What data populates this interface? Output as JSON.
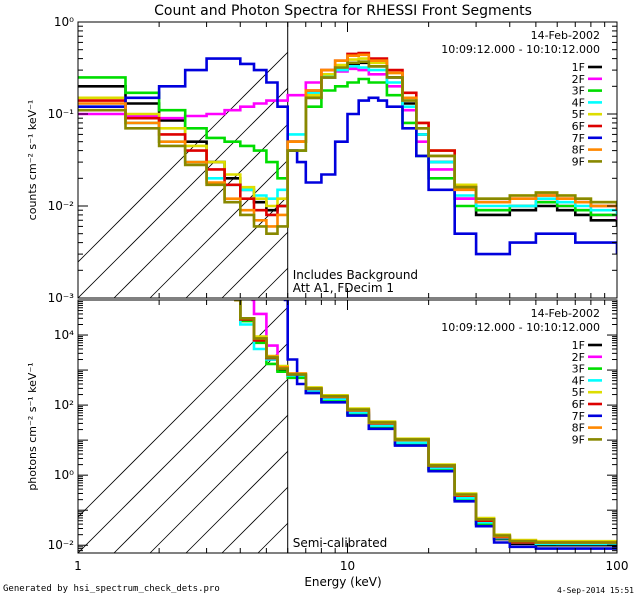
{
  "title": "Count and Photon Spectra for RHESSI Front Segments",
  "footer": {
    "generated_by": "Generated by hsi_spectrum_check_dets.pro",
    "timestamp": "4-Sep-2014 15:51"
  },
  "chart_data": [
    {
      "type": "line",
      "panel": "count spectra",
      "xscale": "log",
      "yscale": "log",
      "xlim": [
        1,
        100
      ],
      "ylim": [
        0.001,
        1
      ],
      "xlabel": "",
      "ylabel": "counts cm⁻² s⁻¹ keV⁻¹",
      "xticklabels": [],
      "yticklabels": [
        {
          "value": 1,
          "label": "10⁰"
        },
        {
          "value": 0.1,
          "label": "10⁻¹"
        },
        {
          "value": 0.01,
          "label": "10⁻²"
        },
        {
          "value": 0.001,
          "label": "10⁻³"
        }
      ],
      "hatched_below_keV": 6,
      "date": "14-Feb-2002",
      "time_range": "10:09:12.000 - 10:10:12.000",
      "annotations": [
        "Includes Background",
        "Att A1, FDecim 1"
      ],
      "series": [
        {
          "name": "1F",
          "color": "#000000",
          "x": [
            1,
            1.5,
            2,
            2.5,
            3,
            3.5,
            4,
            4.5,
            5,
            5.5,
            6,
            7,
            8,
            9,
            10,
            11,
            12,
            14,
            16,
            18,
            20,
            25,
            30,
            40,
            50,
            60,
            70,
            80,
            100
          ],
          "y": [
            0.2,
            0.13,
            0.085,
            0.05,
            0.03,
            0.02,
            0.015,
            0.011,
            0.009,
            0.01,
            0.05,
            0.15,
            0.25,
            0.3,
            0.35,
            0.36,
            0.33,
            0.25,
            0.13,
            0.06,
            0.03,
            0.012,
            0.008,
            0.009,
            0.01,
            0.009,
            0.008,
            0.007,
            0.006
          ]
        },
        {
          "name": "2F",
          "color": "#ff00ff",
          "x": [
            1,
            1.5,
            2,
            2.5,
            3,
            3.5,
            4,
            4.5,
            5,
            5.5,
            6,
            7,
            8,
            9,
            10,
            11,
            12,
            14,
            16,
            18,
            20,
            25,
            30,
            40,
            50,
            60,
            70,
            80,
            100
          ],
          "y": [
            0.1,
            0.095,
            0.09,
            0.095,
            0.1,
            0.11,
            0.12,
            0.13,
            0.14,
            0.14,
            0.16,
            0.22,
            0.26,
            0.29,
            0.31,
            0.3,
            0.27,
            0.2,
            0.11,
            0.05,
            0.025,
            0.012,
            0.009,
            0.01,
            0.011,
            0.01,
            0.009,
            0.008,
            0.007
          ]
        },
        {
          "name": "3F",
          "color": "#00dd00",
          "x": [
            1,
            1.5,
            2,
            2.5,
            3,
            3.5,
            4,
            4.5,
            5,
            5.5,
            6,
            7,
            8,
            9,
            10,
            11,
            12,
            14,
            16,
            18,
            20,
            25,
            30,
            40,
            50,
            60,
            70,
            80,
            100
          ],
          "y": [
            0.25,
            0.17,
            0.11,
            0.07,
            0.055,
            0.05,
            0.045,
            0.04,
            0.03,
            0.02,
            0.04,
            0.12,
            0.18,
            0.2,
            0.22,
            0.24,
            0.22,
            0.16,
            0.08,
            0.035,
            0.02,
            0.01,
            0.009,
            0.01,
            0.011,
            0.01,
            0.009,
            0.008,
            0.008
          ]
        },
        {
          "name": "4F",
          "color": "#00ffff",
          "x": [
            1,
            1.5,
            2,
            2.5,
            3,
            3.5,
            4,
            4.5,
            5,
            5.5,
            6,
            7,
            8,
            9,
            10,
            11,
            12,
            14,
            16,
            18,
            20,
            25,
            30,
            40,
            50,
            60,
            70,
            80,
            100
          ],
          "y": [
            0.12,
            0.08,
            0.05,
            0.03,
            0.02,
            0.017,
            0.015,
            0.013,
            0.012,
            0.015,
            0.06,
            0.17,
            0.26,
            0.3,
            0.33,
            0.32,
            0.3,
            0.22,
            0.12,
            0.06,
            0.03,
            0.013,
            0.01,
            0.01,
            0.012,
            0.011,
            0.01,
            0.009,
            0.008
          ]
        },
        {
          "name": "5F",
          "color": "#dddd00",
          "x": [
            1,
            1.5,
            2,
            2.5,
            3,
            3.5,
            4,
            4.5,
            5,
            5.5,
            6,
            7,
            8,
            9,
            10,
            11,
            12,
            14,
            16,
            18,
            20,
            25,
            30,
            40,
            50,
            60,
            70,
            80,
            100
          ],
          "y": [
            0.15,
            0.1,
            0.07,
            0.045,
            0.03,
            0.022,
            0.016,
            0.012,
            0.01,
            0.012,
            0.05,
            0.16,
            0.27,
            0.34,
            0.39,
            0.4,
            0.36,
            0.28,
            0.15,
            0.08,
            0.04,
            0.017,
            0.012,
            0.013,
            0.014,
            0.013,
            0.012,
            0.011,
            0.01
          ]
        },
        {
          "name": "6F",
          "color": "#dd0000",
          "x": [
            1,
            1.5,
            2,
            2.5,
            3,
            3.5,
            4,
            4.5,
            5,
            5.5,
            6,
            7,
            8,
            9,
            10,
            11,
            12,
            14,
            16,
            18,
            20,
            25,
            30,
            40,
            50,
            60,
            70,
            80,
            100
          ],
          "y": [
            0.14,
            0.09,
            0.06,
            0.04,
            0.025,
            0.017,
            0.012,
            0.009,
            0.008,
            0.01,
            0.05,
            0.18,
            0.3,
            0.38,
            0.45,
            0.46,
            0.4,
            0.3,
            0.17,
            0.08,
            0.04,
            0.016,
            0.011,
            0.012,
            0.013,
            0.012,
            0.011,
            0.01,
            0.009
          ]
        },
        {
          "name": "7F",
          "color": "#0000dd",
          "x": [
            1,
            1.25,
            1.5,
            2,
            2.5,
            3,
            3.5,
            4,
            4.5,
            5,
            5.5,
            6,
            6.5,
            7,
            8,
            9,
            10,
            11,
            12,
            13,
            14,
            16,
            18,
            20,
            25,
            30,
            40,
            50,
            60,
            70,
            80,
            100
          ],
          "y": [
            0.12,
            0.12,
            0.15,
            0.2,
            0.3,
            0.4,
            0.4,
            0.35,
            0.3,
            0.22,
            0.12,
            0.04,
            0.03,
            0.018,
            0.022,
            0.05,
            0.1,
            0.14,
            0.15,
            0.14,
            0.12,
            0.07,
            0.035,
            0.015,
            0.005,
            0.003,
            0.004,
            0.005,
            0.005,
            0.004,
            0.004,
            0.003
          ]
        },
        {
          "name": "8F",
          "color": "#ff8800",
          "x": [
            1,
            1.5,
            2,
            2.5,
            3,
            3.5,
            4,
            4.5,
            5,
            5.5,
            6,
            7,
            8,
            9,
            10,
            11,
            12,
            14,
            16,
            18,
            20,
            25,
            30,
            40,
            50,
            60,
            70,
            80,
            100
          ],
          "y": [
            0.13,
            0.08,
            0.05,
            0.03,
            0.018,
            0.012,
            0.009,
            0.007,
            0.006,
            0.008,
            0.05,
            0.18,
            0.3,
            0.38,
            0.43,
            0.44,
            0.38,
            0.28,
            0.15,
            0.07,
            0.035,
            0.015,
            0.011,
            0.012,
            0.013,
            0.012,
            0.011,
            0.01,
            0.009
          ]
        },
        {
          "name": "9F",
          "color": "#888800",
          "x": [
            1,
            1.5,
            2,
            2.5,
            3,
            3.5,
            4,
            4.5,
            5,
            5.5,
            6,
            7,
            8,
            9,
            10,
            11,
            12,
            14,
            16,
            18,
            20,
            25,
            30,
            40,
            50,
            60,
            70,
            80,
            100
          ],
          "y": [
            0.11,
            0.07,
            0.045,
            0.028,
            0.017,
            0.011,
            0.008,
            0.006,
            0.005,
            0.006,
            0.04,
            0.15,
            0.25,
            0.32,
            0.36,
            0.37,
            0.33,
            0.25,
            0.14,
            0.07,
            0.035,
            0.016,
            0.012,
            0.013,
            0.014,
            0.013,
            0.012,
            0.011,
            0.01
          ]
        }
      ]
    },
    {
      "type": "line",
      "panel": "photon spectra",
      "xscale": "log",
      "yscale": "log",
      "xlim": [
        1,
        100
      ],
      "ylim": [
        0.006,
        100000
      ],
      "xlabel": "Energy (keV)",
      "ylabel": "photons cm⁻² s⁻¹ keV⁻¹",
      "xticklabels": [
        {
          "value": 1,
          "label": "1"
        },
        {
          "value": 10,
          "label": "10"
        },
        {
          "value": 100,
          "label": "100"
        }
      ],
      "yticklabels": [
        {
          "value": 10000,
          "label": "10⁴"
        },
        {
          "value": 100,
          "label": "10²"
        },
        {
          "value": 1,
          "label": "10⁰"
        },
        {
          "value": 0.01,
          "label": "10⁻²"
        }
      ],
      "hatched_below_keV": 6,
      "date": "14-Feb-2002",
      "time_range": "10:09:12.000 - 10:10:12.000",
      "annotations": [
        "Semi-calibrated"
      ],
      "series": [
        {
          "name": "1F",
          "color": "#000000",
          "x": [
            3.8,
            4,
            4.5,
            5,
            5.5,
            6,
            7,
            8,
            10,
            12,
            15,
            20,
            25,
            30,
            35,
            40,
            50,
            60,
            70,
            80,
            100
          ],
          "y": [
            100000,
            30000,
            8000,
            2000,
            1000,
            700,
            250,
            150,
            60,
            25,
            8,
            1.5,
            0.2,
            0.04,
            0.015,
            0.011,
            0.01,
            0.01,
            0.01,
            0.01,
            0.01
          ]
        },
        {
          "name": "2F",
          "color": "#ff00ff",
          "x": [
            4.4,
            4.5,
            5,
            5.5,
            6,
            7,
            8,
            10,
            12,
            15,
            20,
            25,
            30,
            35,
            40,
            50,
            60,
            70,
            80,
            100
          ],
          "y": [
            100000,
            40000,
            5000,
            1200,
            700,
            280,
            160,
            65,
            28,
            9,
            1.7,
            0.25,
            0.05,
            0.018,
            0.013,
            0.012,
            0.011,
            0.011,
            0.011,
            0.011
          ]
        },
        {
          "name": "3F",
          "color": "#00dd00",
          "x": [
            3.8,
            4,
            4.5,
            5,
            5.5,
            6,
            7,
            8,
            10,
            12,
            15,
            20,
            25,
            30,
            35,
            40,
            50,
            60,
            70,
            80,
            100
          ],
          "y": [
            100000,
            25000,
            6000,
            1500,
            900,
            600,
            240,
            140,
            55,
            23,
            7.5,
            1.4,
            0.2,
            0.04,
            0.016,
            0.012,
            0.011,
            0.011,
            0.011,
            0.011,
            0.011
          ]
        },
        {
          "name": "4F",
          "color": "#00ffff",
          "x": [
            3.8,
            4,
            4.5,
            5,
            5.5,
            6,
            7,
            8,
            10,
            12,
            15,
            20,
            25,
            30,
            35,
            40,
            50,
            60,
            70,
            80,
            100
          ],
          "y": [
            100000,
            20000,
            4000,
            2000,
            1200,
            700,
            260,
            150,
            62,
            26,
            8.5,
            1.6,
            0.22,
            0.045,
            0.016,
            0.012,
            0.011,
            0.011,
            0.011,
            0.011,
            0.011
          ]
        },
        {
          "name": "5F",
          "color": "#dddd00",
          "x": [
            3.8,
            4,
            4.5,
            5,
            5.5,
            6,
            7,
            8,
            10,
            12,
            15,
            20,
            25,
            30,
            35,
            40,
            50,
            60,
            70,
            80,
            100
          ],
          "y": [
            100000,
            30000,
            9000,
            2500,
            1300,
            800,
            320,
            190,
            80,
            34,
            11,
            2,
            0.3,
            0.06,
            0.02,
            0.014,
            0.013,
            0.013,
            0.013,
            0.013,
            0.013
          ]
        },
        {
          "name": "6F",
          "color": "#dd0000",
          "x": [
            3.8,
            4,
            4.5,
            5,
            5.5,
            6,
            7,
            8,
            10,
            12,
            15,
            20,
            25,
            30,
            35,
            40,
            50,
            60,
            70,
            80,
            100
          ],
          "y": [
            100000,
            28000,
            7000,
            2200,
            1100,
            750,
            290,
            170,
            70,
            30,
            10,
            1.8,
            0.26,
            0.05,
            0.017,
            0.012,
            0.012,
            0.012,
            0.012,
            0.012,
            0.012
          ]
        },
        {
          "name": "7F",
          "color": "#0000dd",
          "x": [
            5.8,
            6,
            6.5,
            7,
            8,
            10,
            12,
            15,
            20,
            25,
            30,
            35,
            40,
            50,
            60,
            70,
            80,
            100
          ],
          "y": [
            100000,
            2000,
            400,
            220,
            120,
            50,
            21,
            7,
            1.3,
            0.18,
            0.035,
            0.012,
            0.009,
            0.008,
            0.008,
            0.008,
            0.008,
            0.008
          ]
        },
        {
          "name": "8F",
          "color": "#ff8800",
          "x": [
            3.8,
            4,
            4.5,
            5,
            5.5,
            6,
            7,
            8,
            10,
            12,
            15,
            20,
            25,
            30,
            35,
            40,
            50,
            60,
            70,
            80,
            100
          ],
          "y": [
            100000,
            30000,
            8000,
            2400,
            1200,
            800,
            300,
            175,
            72,
            31,
            10,
            1.9,
            0.27,
            0.055,
            0.018,
            0.013,
            0.012,
            0.012,
            0.012,
            0.012,
            0.012
          ]
        },
        {
          "name": "9F",
          "color": "#888800",
          "x": [
            3.8,
            4,
            4.5,
            5,
            5.5,
            6,
            7,
            8,
            10,
            12,
            15,
            20,
            25,
            30,
            35,
            40,
            50,
            60,
            70,
            80,
            100
          ],
          "y": [
            100000,
            30000,
            8000,
            2300,
            1100,
            750,
            300,
            180,
            75,
            32,
            10.5,
            1.9,
            0.28,
            0.055,
            0.019,
            0.013,
            0.012,
            0.012,
            0.012,
            0.012,
            0.012
          ]
        }
      ]
    }
  ]
}
